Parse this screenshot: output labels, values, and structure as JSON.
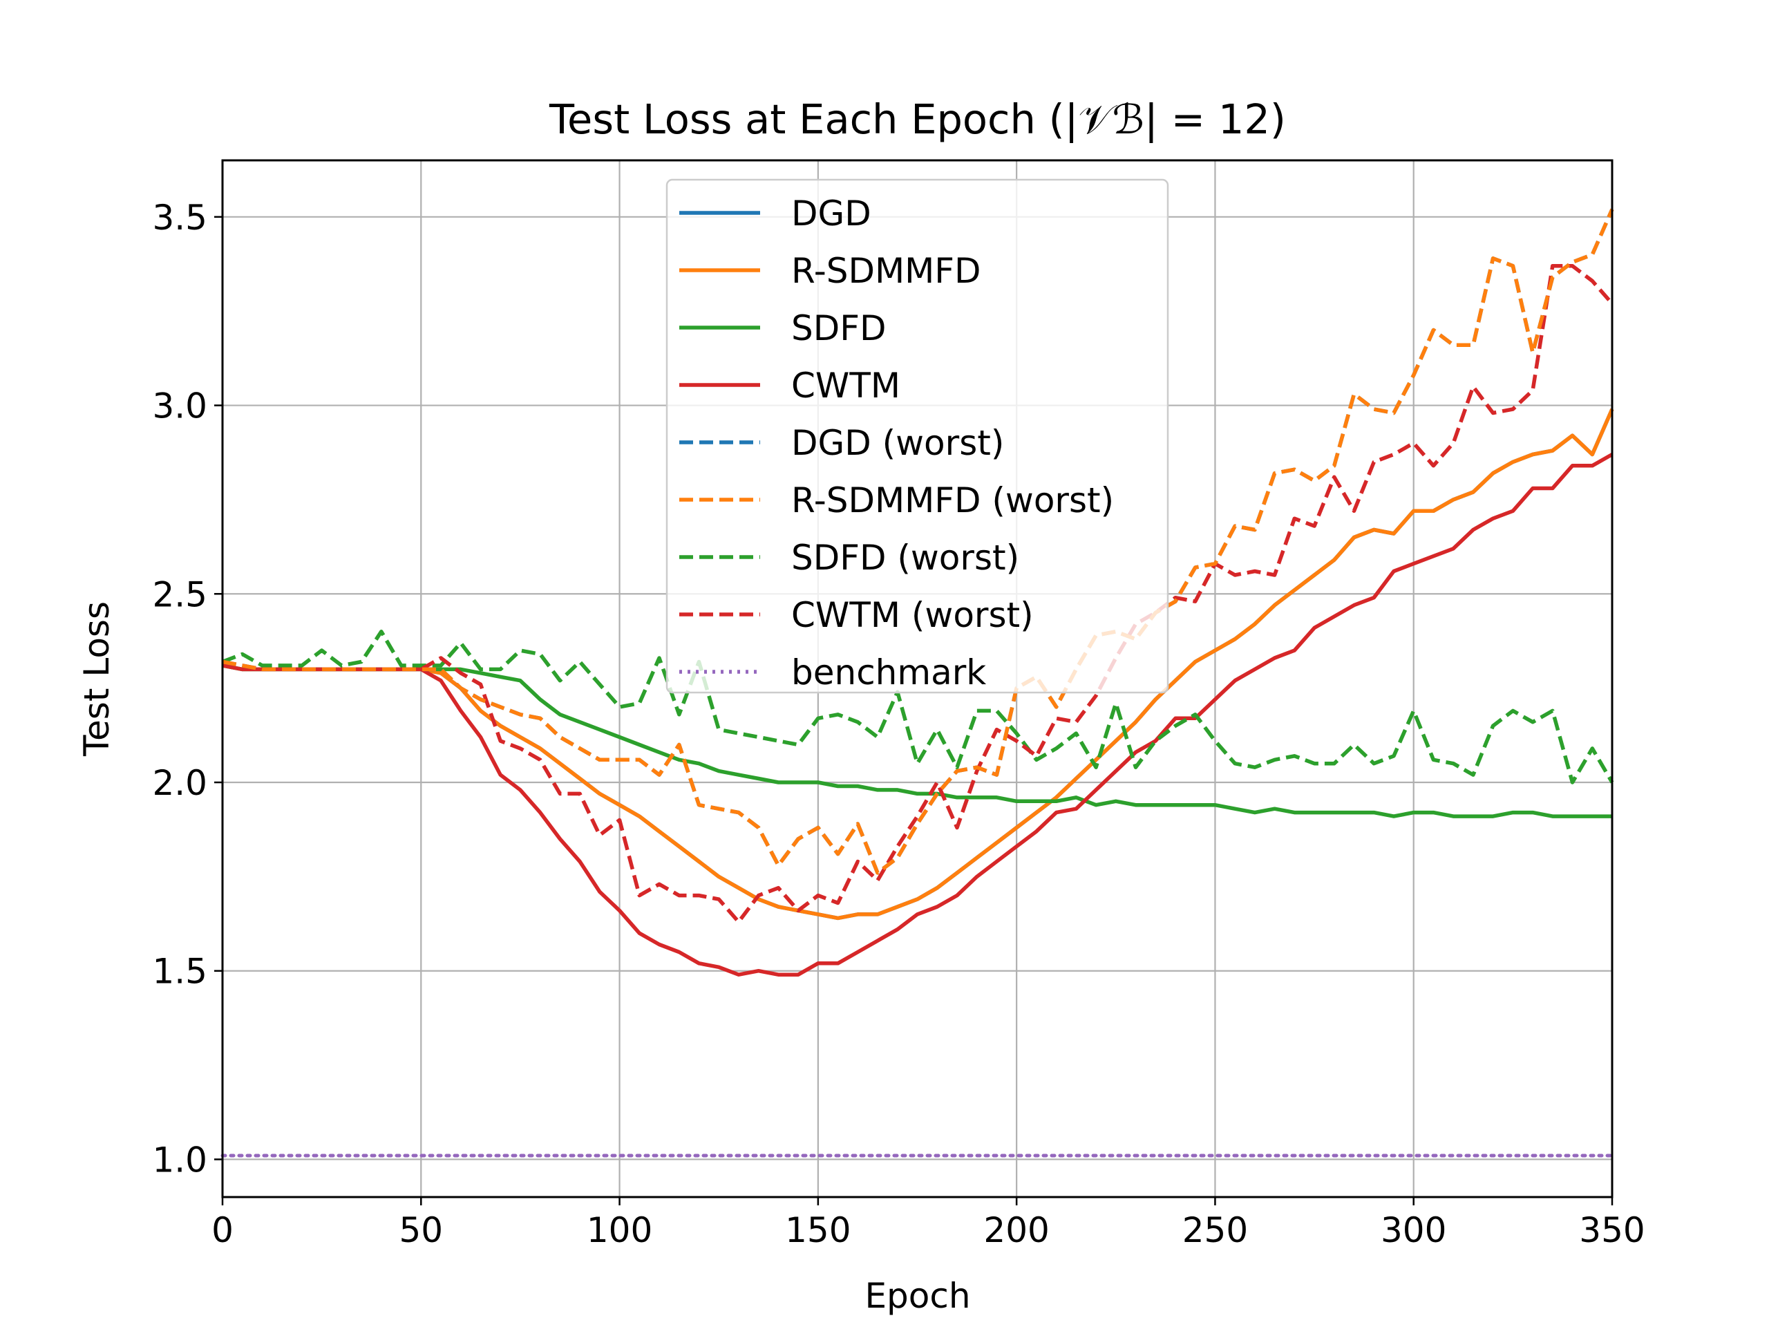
{
  "chart_data": {
    "type": "line",
    "title": "Test Loss at Each Epoch (|𝒱ℬ| = 12)",
    "xlabel": "Epoch",
    "ylabel": "Test Loss",
    "xlim": [
      0,
      350
    ],
    "ylim": [
      0.9,
      3.65
    ],
    "xticks": [
      0,
      50,
      100,
      150,
      200,
      250,
      300,
      350
    ],
    "yticks": [
      1.0,
      1.5,
      2.0,
      2.5,
      3.0,
      3.5
    ],
    "xtick_labels": [
      "0",
      "50",
      "100",
      "150",
      "200",
      "250",
      "300",
      "350"
    ],
    "ytick_labels": [
      "1.0",
      "1.5",
      "2.0",
      "2.5",
      "3.0",
      "3.5"
    ],
    "grid": true,
    "legend_position": "upper-center",
    "x": [
      0,
      5,
      10,
      15,
      20,
      25,
      30,
      35,
      40,
      45,
      50,
      55,
      60,
      65,
      70,
      75,
      80,
      85,
      90,
      95,
      100,
      105,
      110,
      115,
      120,
      125,
      130,
      135,
      140,
      145,
      150,
      155,
      160,
      165,
      170,
      175,
      180,
      185,
      190,
      195,
      200,
      205,
      210,
      215,
      220,
      225,
      230,
      235,
      240,
      245,
      250,
      255,
      260,
      265,
      270,
      275,
      280,
      285,
      290,
      295,
      300,
      305,
      310,
      315,
      320,
      325,
      330,
      335,
      340,
      345,
      350
    ],
    "series": [
      {
        "name": "DGD",
        "color": "#1f77b4",
        "style": "solid",
        "values": [
          2.31,
          2.3,
          2.3,
          2.3,
          2.3,
          2.3,
          2.3,
          2.3,
          2.3,
          2.3,
          2.3,
          2.29,
          2.25,
          2.19,
          2.15,
          2.12,
          2.09,
          2.05,
          2.01,
          1.97,
          1.94,
          1.91,
          1.87,
          1.83,
          1.79,
          1.75,
          1.72,
          1.69,
          1.67,
          1.66,
          1.65,
          1.64,
          1.65,
          1.65,
          1.67,
          1.69,
          1.72,
          1.76,
          1.8,
          1.84,
          1.88,
          1.92,
          1.96,
          2.01,
          2.06,
          2.11,
          2.16,
          2.22,
          2.27,
          2.32,
          2.35,
          2.38,
          2.42,
          2.47,
          2.51,
          2.55,
          2.59,
          2.65,
          2.67,
          2.66,
          2.72,
          2.72,
          2.75,
          2.77,
          2.82,
          2.85,
          2.87,
          2.88,
          2.92,
          2.87,
          2.99
        ]
      },
      {
        "name": "R-SDMMFD",
        "color": "#ff7f0e",
        "style": "solid",
        "values": [
          2.31,
          2.3,
          2.3,
          2.3,
          2.3,
          2.3,
          2.3,
          2.3,
          2.3,
          2.3,
          2.3,
          2.29,
          2.25,
          2.19,
          2.15,
          2.12,
          2.09,
          2.05,
          2.01,
          1.97,
          1.94,
          1.91,
          1.87,
          1.83,
          1.79,
          1.75,
          1.72,
          1.69,
          1.67,
          1.66,
          1.65,
          1.64,
          1.65,
          1.65,
          1.67,
          1.69,
          1.72,
          1.76,
          1.8,
          1.84,
          1.88,
          1.92,
          1.96,
          2.01,
          2.06,
          2.11,
          2.16,
          2.22,
          2.27,
          2.32,
          2.35,
          2.38,
          2.42,
          2.47,
          2.51,
          2.55,
          2.59,
          2.65,
          2.67,
          2.66,
          2.72,
          2.72,
          2.75,
          2.77,
          2.82,
          2.85,
          2.87,
          2.88,
          2.92,
          2.87,
          2.99
        ]
      },
      {
        "name": "SDFD",
        "color": "#2ca02c",
        "style": "solid",
        "values": [
          2.31,
          2.3,
          2.3,
          2.3,
          2.3,
          2.3,
          2.3,
          2.3,
          2.3,
          2.3,
          2.3,
          2.3,
          2.3,
          2.29,
          2.28,
          2.27,
          2.22,
          2.18,
          2.16,
          2.14,
          2.12,
          2.1,
          2.08,
          2.06,
          2.05,
          2.03,
          2.02,
          2.01,
          2.0,
          2.0,
          2.0,
          1.99,
          1.99,
          1.98,
          1.98,
          1.97,
          1.97,
          1.96,
          1.96,
          1.96,
          1.95,
          1.95,
          1.95,
          1.96,
          1.94,
          1.95,
          1.94,
          1.94,
          1.94,
          1.94,
          1.94,
          1.93,
          1.92,
          1.93,
          1.92,
          1.92,
          1.92,
          1.92,
          1.92,
          1.91,
          1.92,
          1.92,
          1.91,
          1.91,
          1.91,
          1.92,
          1.92,
          1.91,
          1.91,
          1.91,
          1.91
        ]
      },
      {
        "name": "CWTM",
        "color": "#d62728",
        "style": "solid",
        "values": [
          2.31,
          2.3,
          2.3,
          2.3,
          2.3,
          2.3,
          2.3,
          2.3,
          2.3,
          2.3,
          2.3,
          2.27,
          2.19,
          2.12,
          2.02,
          1.98,
          1.92,
          1.85,
          1.79,
          1.71,
          1.66,
          1.6,
          1.57,
          1.55,
          1.52,
          1.51,
          1.49,
          1.5,
          1.49,
          1.49,
          1.52,
          1.52,
          1.55,
          1.58,
          1.61,
          1.65,
          1.67,
          1.7,
          1.75,
          1.79,
          1.83,
          1.87,
          1.92,
          1.93,
          1.98,
          2.03,
          2.08,
          2.11,
          2.17,
          2.17,
          2.22,
          2.27,
          2.3,
          2.33,
          2.35,
          2.41,
          2.44,
          2.47,
          2.49,
          2.56,
          2.58,
          2.6,
          2.62,
          2.67,
          2.7,
          2.72,
          2.78,
          2.78,
          2.84,
          2.84,
          2.87
        ]
      },
      {
        "name": "DGD (worst)",
        "color": "#1f77b4",
        "style": "dashed",
        "values": [
          2.32,
          2.31,
          2.3,
          2.3,
          2.3,
          2.3,
          2.3,
          2.3,
          2.3,
          2.3,
          2.3,
          2.3,
          2.25,
          2.22,
          2.2,
          2.18,
          2.17,
          2.12,
          2.09,
          2.06,
          2.06,
          2.06,
          2.02,
          2.1,
          1.94,
          1.93,
          1.92,
          1.88,
          1.78,
          1.85,
          1.88,
          1.81,
          1.89,
          1.76,
          1.8,
          1.89,
          1.97,
          2.03,
          2.04,
          2.02,
          2.25,
          2.28,
          2.2,
          2.3,
          2.39,
          2.4,
          2.38,
          2.45,
          2.48,
          2.57,
          2.58,
          2.68,
          2.67,
          2.82,
          2.83,
          2.8,
          2.84,
          3.03,
          2.99,
          2.98,
          3.08,
          3.2,
          3.16,
          3.16,
          3.39,
          3.37,
          3.14,
          3.34,
          3.38,
          3.4,
          3.52
        ]
      },
      {
        "name": "R-SDMMFD (worst)",
        "color": "#ff7f0e",
        "style": "dashed",
        "values": [
          2.32,
          2.31,
          2.3,
          2.3,
          2.3,
          2.3,
          2.3,
          2.3,
          2.3,
          2.3,
          2.3,
          2.3,
          2.25,
          2.22,
          2.2,
          2.18,
          2.17,
          2.12,
          2.09,
          2.06,
          2.06,
          2.06,
          2.02,
          2.1,
          1.94,
          1.93,
          1.92,
          1.88,
          1.78,
          1.85,
          1.88,
          1.81,
          1.89,
          1.76,
          1.8,
          1.89,
          1.97,
          2.03,
          2.04,
          2.02,
          2.25,
          2.28,
          2.2,
          2.3,
          2.39,
          2.4,
          2.38,
          2.45,
          2.48,
          2.57,
          2.58,
          2.68,
          2.67,
          2.82,
          2.83,
          2.8,
          2.84,
          3.03,
          2.99,
          2.98,
          3.08,
          3.2,
          3.16,
          3.16,
          3.39,
          3.37,
          3.14,
          3.34,
          3.38,
          3.4,
          3.52
        ]
      },
      {
        "name": "SDFD (worst)",
        "color": "#2ca02c",
        "style": "dashed",
        "values": [
          2.32,
          2.34,
          2.31,
          2.31,
          2.31,
          2.35,
          2.31,
          2.32,
          2.4,
          2.31,
          2.31,
          2.31,
          2.37,
          2.3,
          2.3,
          2.35,
          2.34,
          2.27,
          2.32,
          2.26,
          2.2,
          2.21,
          2.33,
          2.18,
          2.32,
          2.14,
          2.13,
          2.12,
          2.11,
          2.1,
          2.17,
          2.18,
          2.16,
          2.12,
          2.24,
          2.05,
          2.14,
          2.04,
          2.19,
          2.19,
          2.13,
          2.06,
          2.09,
          2.13,
          2.04,
          2.21,
          2.04,
          2.11,
          2.15,
          2.18,
          2.11,
          2.05,
          2.04,
          2.06,
          2.07,
          2.05,
          2.05,
          2.1,
          2.05,
          2.07,
          2.19,
          2.06,
          2.05,
          2.02,
          2.15,
          2.19,
          2.16,
          2.19,
          2.0,
          2.09,
          2.0
        ]
      },
      {
        "name": "CWTM (worst)",
        "color": "#d62728",
        "style": "dashed",
        "values": [
          2.32,
          2.31,
          2.3,
          2.3,
          2.3,
          2.3,
          2.3,
          2.3,
          2.3,
          2.3,
          2.3,
          2.33,
          2.29,
          2.26,
          2.11,
          2.09,
          2.06,
          1.97,
          1.97,
          1.86,
          1.9,
          1.7,
          1.73,
          1.7,
          1.7,
          1.69,
          1.63,
          1.7,
          1.72,
          1.66,
          1.7,
          1.68,
          1.79,
          1.74,
          1.83,
          1.91,
          2.0,
          1.88,
          2.03,
          2.14,
          2.11,
          2.07,
          2.17,
          2.16,
          2.23,
          2.33,
          2.42,
          2.45,
          2.49,
          2.48,
          2.58,
          2.55,
          2.56,
          2.55,
          2.7,
          2.68,
          2.81,
          2.72,
          2.85,
          2.87,
          2.9,
          2.84,
          2.9,
          3.05,
          2.98,
          2.99,
          3.04,
          3.37,
          3.37,
          3.33,
          3.27
        ]
      },
      {
        "name": "benchmark",
        "color": "#9467bd",
        "style": "dotted",
        "values": [
          1.01,
          1.01,
          1.01,
          1.01,
          1.01,
          1.01,
          1.01,
          1.01,
          1.01,
          1.01,
          1.01,
          1.01,
          1.01,
          1.01,
          1.01,
          1.01,
          1.01,
          1.01,
          1.01,
          1.01,
          1.01,
          1.01,
          1.01,
          1.01,
          1.01,
          1.01,
          1.01,
          1.01,
          1.01,
          1.01,
          1.01,
          1.01,
          1.01,
          1.01,
          1.01,
          1.01,
          1.01,
          1.01,
          1.01,
          1.01,
          1.01,
          1.01,
          1.01,
          1.01,
          1.01,
          1.01,
          1.01,
          1.01,
          1.01,
          1.01,
          1.01,
          1.01,
          1.01,
          1.01,
          1.01,
          1.01,
          1.01,
          1.01,
          1.01,
          1.01,
          1.01,
          1.01,
          1.01,
          1.01,
          1.01,
          1.01,
          1.01,
          1.01,
          1.01,
          1.01,
          1.01
        ]
      }
    ]
  }
}
